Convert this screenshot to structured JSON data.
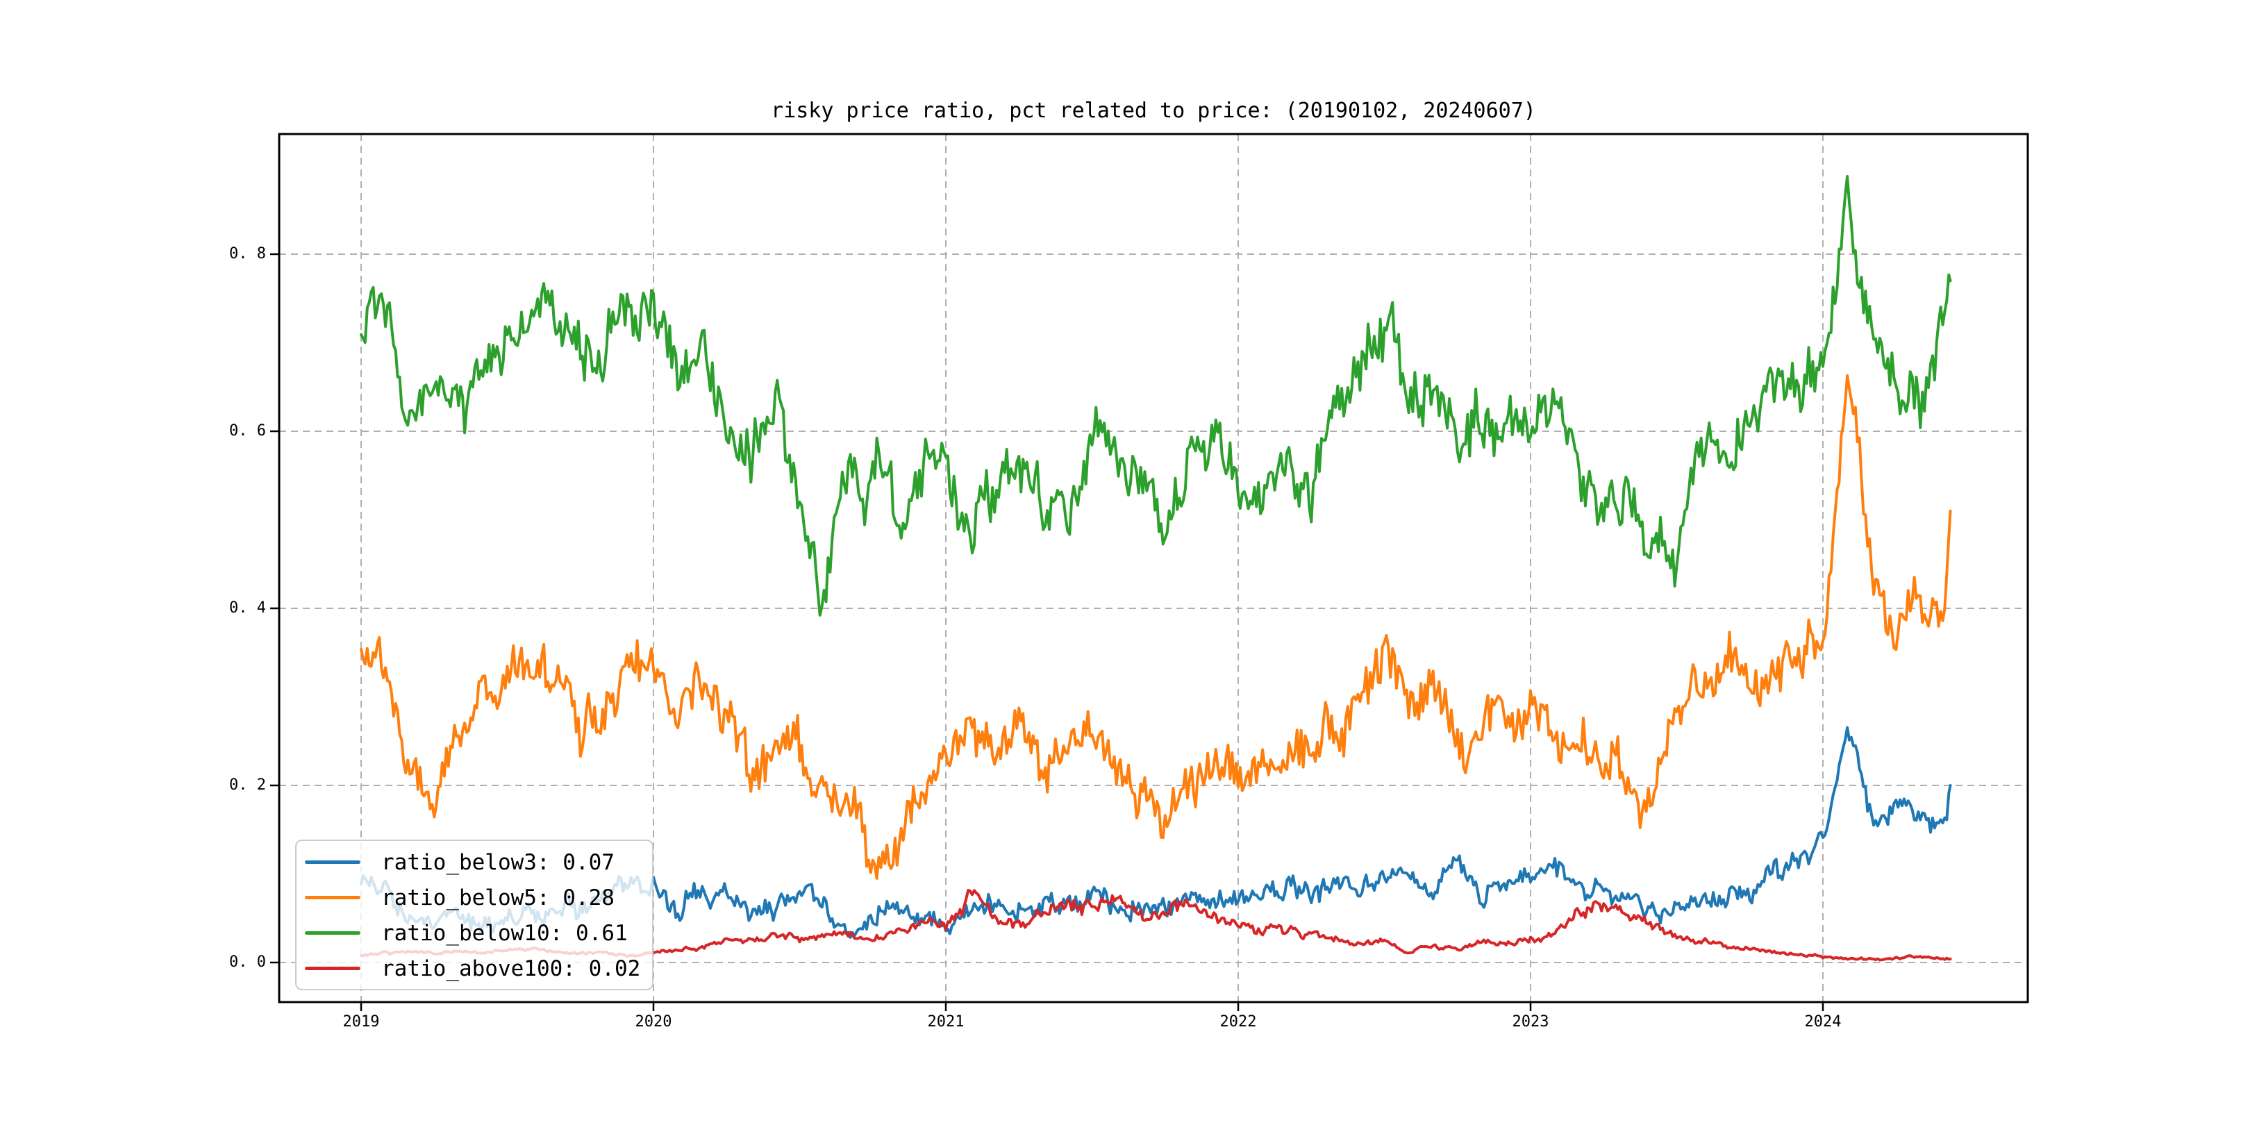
{
  "figure": {
    "background": "#ffffff",
    "grid_color": "#b0b0b0",
    "axis_color": "#000000"
  },
  "chart_data": {
    "type": "line",
    "title": "risky price ratio, pct related to price: (20190102, 20240607)",
    "date_range": [
      "20190102",
      "20240607"
    ],
    "x_tick_labels": [
      "2019",
      "2020",
      "2021",
      "2022",
      "2023",
      "2024"
    ],
    "y_tick_labels": [
      "0. 0",
      "0. 2",
      "0. 4",
      "0. 6",
      "0. 8"
    ],
    "y_tick_values": [
      0.0,
      0.2,
      0.4,
      0.6,
      0.8
    ],
    "ylim": [
      -0.045,
      0.935
    ],
    "grid": "dashed",
    "legend_position": "lower left",
    "x_anchor_note": "monthly estimates Jan2019..Jun2024 read from plot; last_value = final point at 20240607",
    "series": [
      {
        "name": "ratio_below3",
        "legend_label": "ratio_below3: 0.07",
        "color": "#1f77b4",
        "noise": 0.011,
        "monthly_values": [
          0.08,
          0.09,
          0.05,
          0.04,
          0.05,
          0.04,
          0.05,
          0.06,
          0.055,
          0.06,
          0.065,
          0.075,
          0.09,
          0.05,
          0.08,
          0.08,
          0.06,
          0.07,
          0.085,
          0.06,
          0.035,
          0.05,
          0.06,
          0.06,
          0.04,
          0.06,
          0.07,
          0.06,
          0.065,
          0.07,
          0.075,
          0.065,
          0.06,
          0.055,
          0.07,
          0.075,
          0.08,
          0.07,
          0.09,
          0.08,
          0.1,
          0.09,
          0.095,
          0.1,
          0.09,
          0.11,
          0.085,
          0.1,
          0.095,
          0.1,
          0.09,
          0.08,
          0.075,
          0.06,
          0.055,
          0.07,
          0.085,
          0.09,
          0.105,
          0.11,
          0.13,
          0.26,
          0.17,
          0.18,
          0.17,
          0.16
        ],
        "last_value": 0.2
      },
      {
        "name": "ratio_below5",
        "legend_label": "ratio_below5: 0.28",
        "color": "#ff7f0e",
        "noise": 0.024,
        "monthly_values": [
          0.33,
          0.36,
          0.22,
          0.18,
          0.25,
          0.28,
          0.31,
          0.34,
          0.33,
          0.26,
          0.3,
          0.34,
          0.36,
          0.31,
          0.33,
          0.3,
          0.2,
          0.26,
          0.24,
          0.2,
          0.17,
          0.11,
          0.13,
          0.19,
          0.25,
          0.28,
          0.24,
          0.27,
          0.23,
          0.22,
          0.27,
          0.22,
          0.18,
          0.14,
          0.17,
          0.22,
          0.22,
          0.2,
          0.26,
          0.23,
          0.28,
          0.33,
          0.36,
          0.28,
          0.31,
          0.24,
          0.27,
          0.26,
          0.28,
          0.26,
          0.25,
          0.24,
          0.21,
          0.19,
          0.27,
          0.31,
          0.33,
          0.32,
          0.34,
          0.35,
          0.36,
          0.66,
          0.44,
          0.38,
          0.42,
          0.4
        ],
        "last_value": 0.51
      },
      {
        "name": "ratio_below10",
        "legend_label": "ratio_below10: 0.61",
        "color": "#2ca02c",
        "noise": 0.028,
        "monthly_values": [
          0.72,
          0.77,
          0.6,
          0.66,
          0.63,
          0.67,
          0.7,
          0.73,
          0.75,
          0.69,
          0.71,
          0.73,
          0.74,
          0.67,
          0.7,
          0.62,
          0.58,
          0.62,
          0.52,
          0.41,
          0.56,
          0.54,
          0.51,
          0.56,
          0.57,
          0.49,
          0.55,
          0.59,
          0.54,
          0.5,
          0.62,
          0.56,
          0.58,
          0.47,
          0.55,
          0.6,
          0.55,
          0.52,
          0.57,
          0.54,
          0.6,
          0.66,
          0.73,
          0.63,
          0.66,
          0.57,
          0.61,
          0.6,
          0.62,
          0.63,
          0.55,
          0.51,
          0.52,
          0.49,
          0.46,
          0.58,
          0.6,
          0.63,
          0.66,
          0.67,
          0.68,
          0.86,
          0.72,
          0.66,
          0.64,
          0.7
        ],
        "last_value": 0.77
      },
      {
        "name": "ratio_above100",
        "legend_label": "ratio_above100: 0.02",
        "color": "#d62728",
        "noise": 0.007,
        "monthly_values": [
          0.008,
          0.01,
          0.012,
          0.01,
          0.012,
          0.01,
          0.013,
          0.015,
          0.012,
          0.01,
          0.012,
          0.008,
          0.012,
          0.015,
          0.018,
          0.022,
          0.025,
          0.035,
          0.03,
          0.028,
          0.033,
          0.028,
          0.035,
          0.045,
          0.045,
          0.08,
          0.05,
          0.045,
          0.055,
          0.07,
          0.06,
          0.075,
          0.05,
          0.055,
          0.065,
          0.05,
          0.05,
          0.04,
          0.035,
          0.03,
          0.025,
          0.02,
          0.025,
          0.01,
          0.02,
          0.015,
          0.025,
          0.02,
          0.025,
          0.03,
          0.055,
          0.065,
          0.05,
          0.04,
          0.03,
          0.025,
          0.02,
          0.015,
          0.012,
          0.01,
          0.006,
          0.005,
          0.004,
          0.005,
          0.006,
          0.004
        ],
        "last_value": 0.004
      }
    ]
  }
}
